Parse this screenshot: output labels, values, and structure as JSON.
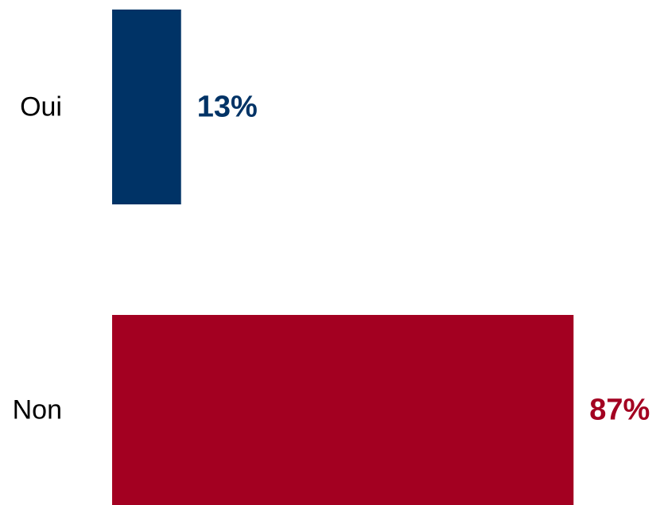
{
  "chart_data": {
    "type": "bar",
    "orientation": "horizontal",
    "categories": [
      "Oui",
      "Non"
    ],
    "values": [
      13,
      87
    ],
    "value_labels": [
      "13%",
      "87%"
    ],
    "colors": [
      "#003366",
      "#A30021"
    ],
    "value_label_colors": [
      "#003366",
      "#A30021"
    ],
    "xlim": [
      0,
      100
    ],
    "grid": false,
    "legend": "none"
  }
}
